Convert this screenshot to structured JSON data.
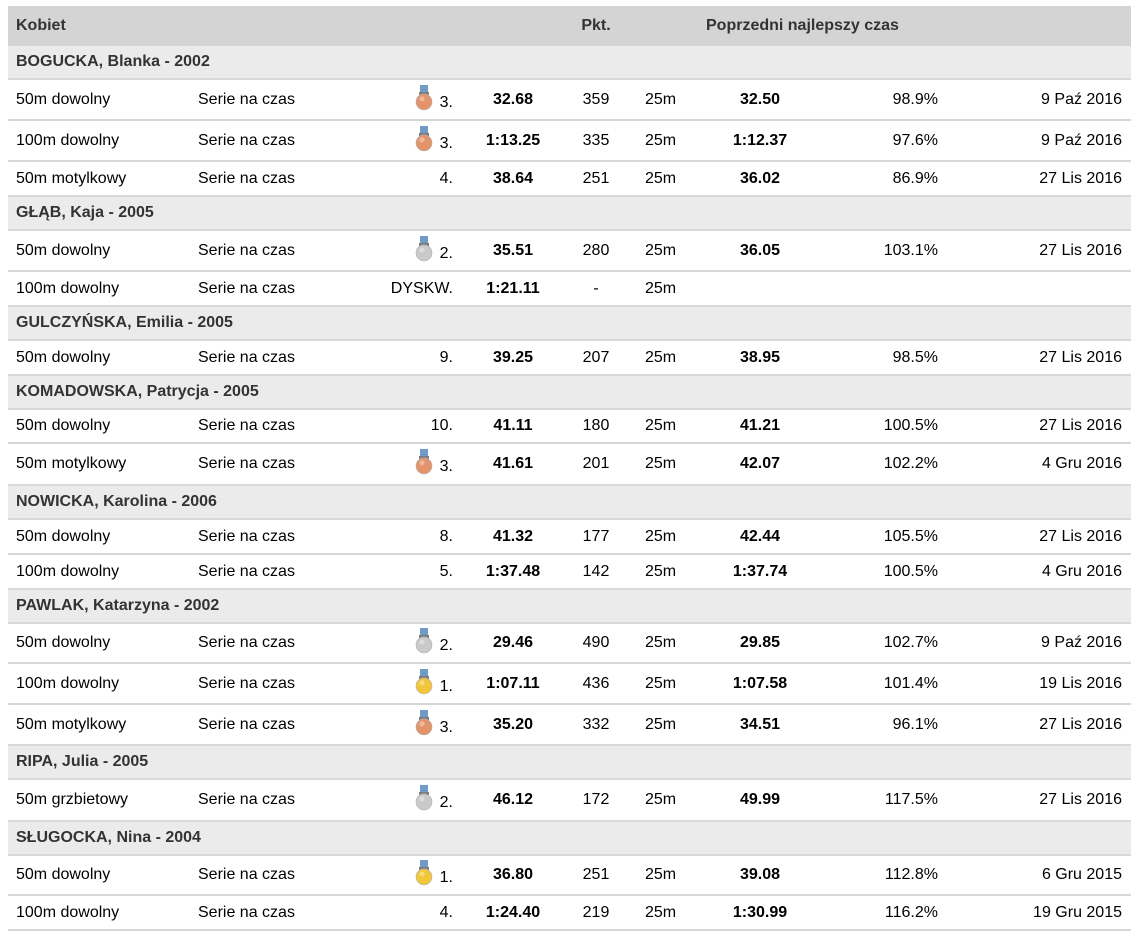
{
  "header": {
    "category": "Kobiet",
    "points": "Pkt.",
    "previous_best": "Poprzedni najlepszy czas"
  },
  "colors": {
    "header_bg": "#d4d4d4",
    "swimmer_bg": "#ebebeb",
    "separator": "#d8d8d8",
    "gold": "#f2c63a",
    "silver": "#c9c9c9",
    "bronze": "#e3946a",
    "ribbon": "#6f9bc6"
  },
  "swimmers": [
    {
      "name": "BOGUCKA, Blanka - 2002",
      "results": [
        {
          "event": "50m dowolny",
          "round": "Serie na czas",
          "medal": "bronze-medal-icon",
          "place": "3.",
          "time": "32.68",
          "points": "359",
          "course": "25m",
          "prev_time": "32.50",
          "percent": "98.9%",
          "date": "9 Paź 2016"
        },
        {
          "event": "100m dowolny",
          "round": "Serie na czas",
          "medal": "bronze-medal-icon",
          "place": "3.",
          "time": "1:13.25",
          "points": "335",
          "course": "25m",
          "prev_time": "1:12.37",
          "percent": "97.6%",
          "date": "9 Paź 2016"
        },
        {
          "event": "50m motylkowy",
          "round": "Serie na czas",
          "medal": "",
          "place": "4.",
          "time": "38.64",
          "points": "251",
          "course": "25m",
          "prev_time": "36.02",
          "percent": "86.9%",
          "date": "27 Lis 2016"
        }
      ]
    },
    {
      "name": "GŁĄB, Kaja - 2005",
      "results": [
        {
          "event": "50m dowolny",
          "round": "Serie na czas",
          "medal": "silver-medal-icon",
          "place": "2.",
          "time": "35.51",
          "points": "280",
          "course": "25m",
          "prev_time": "36.05",
          "percent": "103.1%",
          "date": "27 Lis 2016"
        },
        {
          "event": "100m dowolny",
          "round": "Serie na czas",
          "medal": "",
          "place": "DYSKW.",
          "time": "1:21.11",
          "points": "-",
          "course": "25m",
          "prev_time": "",
          "percent": "",
          "date": ""
        }
      ]
    },
    {
      "name": "GULCZYŃSKA, Emilia - 2005",
      "results": [
        {
          "event": "50m dowolny",
          "round": "Serie na czas",
          "medal": "",
          "place": "9.",
          "time": "39.25",
          "points": "207",
          "course": "25m",
          "prev_time": "38.95",
          "percent": "98.5%",
          "date": "27 Lis 2016"
        }
      ]
    },
    {
      "name": "KOMADOWSKA, Patrycja - 2005",
      "results": [
        {
          "event": "50m dowolny",
          "round": "Serie na czas",
          "medal": "",
          "place": "10.",
          "time": "41.11",
          "points": "180",
          "course": "25m",
          "prev_time": "41.21",
          "percent": "100.5%",
          "date": "27 Lis 2016"
        },
        {
          "event": "50m motylkowy",
          "round": "Serie na czas",
          "medal": "bronze-medal-icon",
          "place": "3.",
          "time": "41.61",
          "points": "201",
          "course": "25m",
          "prev_time": "42.07",
          "percent": "102.2%",
          "date": "4 Gru 2016"
        }
      ]
    },
    {
      "name": "NOWICKA, Karolina - 2006",
      "results": [
        {
          "event": "50m dowolny",
          "round": "Serie na czas",
          "medal": "",
          "place": "8.",
          "time": "41.32",
          "points": "177",
          "course": "25m",
          "prev_time": "42.44",
          "percent": "105.5%",
          "date": "27 Lis 2016"
        },
        {
          "event": "100m dowolny",
          "round": "Serie na czas",
          "medal": "",
          "place": "5.",
          "time": "1:37.48",
          "points": "142",
          "course": "25m",
          "prev_time": "1:37.74",
          "percent": "100.5%",
          "date": "4 Gru 2016"
        }
      ]
    },
    {
      "name": "PAWLAK, Katarzyna - 2002",
      "results": [
        {
          "event": "50m dowolny",
          "round": "Serie na czas",
          "medal": "silver-medal-icon",
          "place": "2.",
          "time": "29.46",
          "points": "490",
          "course": "25m",
          "prev_time": "29.85",
          "percent": "102.7%",
          "date": "9 Paź 2016"
        },
        {
          "event": "100m dowolny",
          "round": "Serie na czas",
          "medal": "gold-medal-icon",
          "place": "1.",
          "time": "1:07.11",
          "points": "436",
          "course": "25m",
          "prev_time": "1:07.58",
          "percent": "101.4%",
          "date": "19 Lis 2016"
        },
        {
          "event": "50m motylkowy",
          "round": "Serie na czas",
          "medal": "bronze-medal-icon",
          "place": "3.",
          "time": "35.20",
          "points": "332",
          "course": "25m",
          "prev_time": "34.51",
          "percent": "96.1%",
          "date": "27 Lis 2016"
        }
      ]
    },
    {
      "name": "RIPA, Julia - 2005",
      "results": [
        {
          "event": "50m grzbietowy",
          "round": "Serie na czas",
          "medal": "silver-medal-icon",
          "place": "2.",
          "time": "46.12",
          "points": "172",
          "course": "25m",
          "prev_time": "49.99",
          "percent": "117.5%",
          "date": "27 Lis 2016"
        }
      ]
    },
    {
      "name": "SŁUGOCKA, Nina - 2004",
      "results": [
        {
          "event": "50m dowolny",
          "round": "Serie na czas",
          "medal": "gold-medal-icon",
          "place": "1.",
          "time": "36.80",
          "points": "251",
          "course": "25m",
          "prev_time": "39.08",
          "percent": "112.8%",
          "date": "6 Gru 2015"
        },
        {
          "event": "100m dowolny",
          "round": "Serie na czas",
          "medal": "",
          "place": "4.",
          "time": "1:24.40",
          "points": "219",
          "course": "25m",
          "prev_time": "1:30.99",
          "percent": "116.2%",
          "date": "19 Gru 2015"
        }
      ]
    }
  ]
}
